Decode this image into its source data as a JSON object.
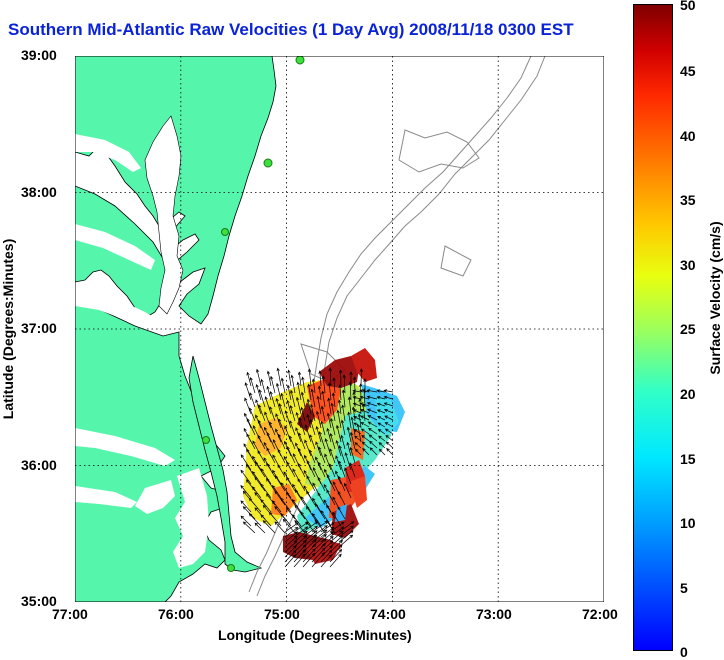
{
  "title": "Southern Mid-Atlantic Raw Velocities (1 Day Avg) 2008/11/18 0300 EST",
  "map": {
    "x_axis_label": "Longitude (Degrees:Minutes)",
    "y_axis_label": "Latitude (Degrees:Minutes)",
    "x_ticks": [
      "77:00",
      "76:00",
      "75:00",
      "74:00",
      "73:00",
      "72:00"
    ],
    "y_ticks": [
      "39:00",
      "38:00",
      "37:00",
      "36:00",
      "35:00"
    ],
    "lon_range": [
      -77,
      -72
    ],
    "lat_range": [
      35,
      39
    ],
    "grid": "dotted",
    "land_color": "#55f5ac",
    "shoreline_color": "#000000",
    "bathymetry_color": "#8a8a8a",
    "station_color": "#3ce03c",
    "arrow_color": "#000000"
  },
  "colorbar": {
    "label": "Surface Velocity (cm/s)",
    "min": 0,
    "max": 50,
    "ticks": [
      "0",
      "5",
      "10",
      "15",
      "20",
      "25",
      "30",
      "35",
      "40",
      "45",
      "50"
    ],
    "colormap": "jet"
  }
}
